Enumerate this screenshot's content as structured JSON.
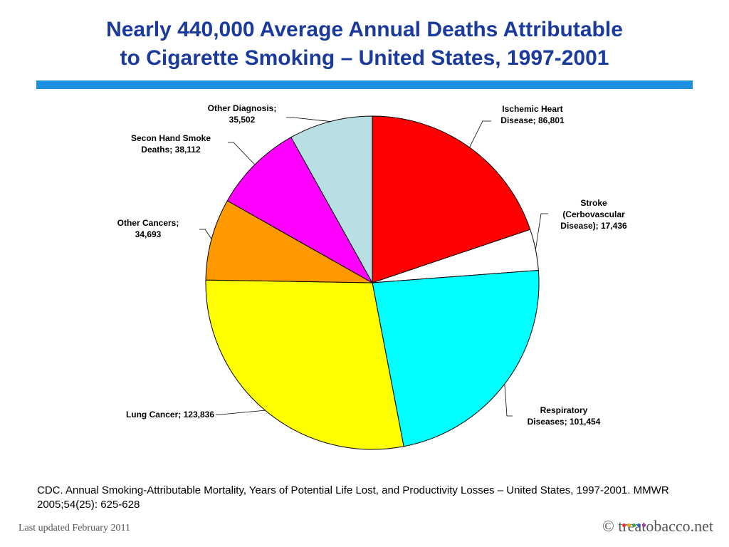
{
  "title": {
    "line1": "Nearly 440,000 Average Annual Deaths Attributable",
    "line2": "to Cigarette Smoking – United States, 1997-2001"
  },
  "chart_data": {
    "type": "pie",
    "start": "top-clockwise",
    "slices": [
      {
        "label": "Ischemic Heart Disease; 86,801",
        "lines": [
          "Ischemic Heart",
          "Disease; 86,801"
        ],
        "value": 86801,
        "color": "#ff0000"
      },
      {
        "label": "Stroke (Cerbovascular Disease); 17,436",
        "lines": [
          "Stroke",
          "(Cerbovascular",
          "Disease); 17,436"
        ],
        "value": 17436,
        "color": "#ffffff"
      },
      {
        "label": "Respiratory Diseases; 101,454",
        "lines": [
          "Respiratory",
          "Diseases; 101,454"
        ],
        "value": 101454,
        "color": "#00ffff"
      },
      {
        "label": "Lung Cancer; 123,836",
        "lines": [
          "Lung Cancer; 123,836"
        ],
        "value": 123836,
        "color": "#ffff00"
      },
      {
        "label": "Other Cancers; 34,693",
        "lines": [
          "Other Cancers;",
          "34,693"
        ],
        "value": 34693,
        "color": "#ff9900"
      },
      {
        "label": "Secon Hand Smoke Deaths; 38,112",
        "lines": [
          "Secon Hand Smoke",
          "Deaths; 38,112"
        ],
        "value": 38112,
        "color": "#ff00ff"
      },
      {
        "label": "Other Diagnosis; 35,502",
        "lines": [
          "Other Diagnosis;",
          "35,502"
        ],
        "value": 35502,
        "color": "#b8e0e4"
      }
    ]
  },
  "source": "CDC. Annual Smoking-Attributable Mortality, Years of Potential Life Lost, and Productivity Losses – United States, 1997-2001. MMWR 2005;54(25): 625-628",
  "footer": {
    "updated": "Last updated February 2011",
    "brand": "© treatobacco.net",
    "brand_dot_colors": [
      "#e03030",
      "#f0a020",
      "#40a040",
      "#3060c0",
      "#a040a0"
    ]
  }
}
